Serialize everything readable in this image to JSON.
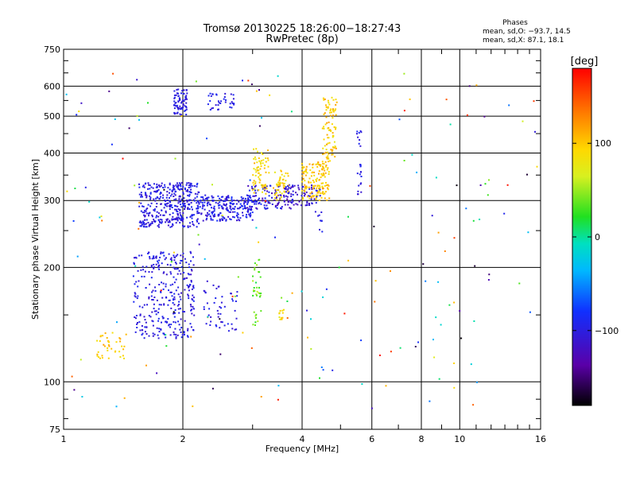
{
  "chart_data": {
    "type": "scatter",
    "title": "Tromsø 20130225 18:26:00−18:27:43",
    "subtitle": "RwPretec (8p)",
    "xlabel": "Frequency [MHz]",
    "ylabel": "Stationary phase Virtual Height [km]",
    "x_scale": "log",
    "y_scale": "log",
    "xlim": [
      1,
      16
    ],
    "ylim": [
      75,
      750
    ],
    "x_ticks": [
      1,
      2,
      4,
      6,
      8,
      10,
      16
    ],
    "x_tick_labels": [
      "1",
      "2",
      "4",
      "6",
      "8",
      "10",
      "16"
    ],
    "x_minor_ticks": [
      3,
      5,
      7,
      9,
      11,
      12,
      13,
      14,
      15
    ],
    "y_ticks": [
      75,
      100,
      200,
      300,
      400,
      500,
      600,
      750
    ],
    "y_tick_labels": [
      "75",
      "100",
      "200",
      "300",
      "400",
      "500",
      "600",
      "750"
    ],
    "y_minor_ticks": [
      80,
      90,
      150,
      250,
      350,
      450,
      550,
      650,
      700
    ],
    "grid": true,
    "colorbar": {
      "title": "[deg]",
      "range": [
        -180,
        180
      ],
      "ticks": [
        -100,
        0,
        100
      ],
      "tick_labels": [
        "−100",
        "0",
        "100"
      ]
    },
    "stats": {
      "title": "Phases",
      "line_o": "mean, sd,O: −93.7, 14.5",
      "line_x": "mean, sd,X:  87.1, 18.1"
    },
    "clusters": [
      {
        "x": [
          1.5,
          2.15
        ],
        "y": [
          130,
          220
        ],
        "phase": [
          -115,
          -85
        ],
        "count": 320
      },
      {
        "x": [
          1.9,
          2.05
        ],
        "y": [
          500,
          590
        ],
        "phase": [
          -110,
          -90
        ],
        "count": 70
      },
      {
        "x": [
          2.3,
          2.7
        ],
        "y": [
          520,
          575
        ],
        "phase": [
          -110,
          -85
        ],
        "count": 35
      },
      {
        "x": [
          2.25,
          2.75
        ],
        "y": [
          135,
          185
        ],
        "phase": [
          -115,
          -85
        ],
        "count": 50
      },
      {
        "x": [
          1.55,
          2.2
        ],
        "y": [
          255,
          335
        ],
        "phase": [
          -115,
          -85
        ],
        "count": 380
      },
      {
        "x": [
          2.2,
          3.0
        ],
        "y": [
          265,
          310
        ],
        "phase": [
          -115,
          -80
        ],
        "count": 220
      },
      {
        "x": [
          2.9,
          3.8
        ],
        "y": [
          285,
          330
        ],
        "phase": [
          -130,
          -80
        ],
        "count": 120
      },
      {
        "x": [
          3.0,
          3.3
        ],
        "y": [
          310,
          420
        ],
        "phase": [
          70,
          115
        ],
        "count": 70
      },
      {
        "x": [
          3.4,
          3.7
        ],
        "y": [
          300,
          360
        ],
        "phase": [
          75,
          110
        ],
        "count": 50
      },
      {
        "x": [
          3.6,
          4.3
        ],
        "y": [
          290,
          330
        ],
        "phase": [
          -125,
          -90
        ],
        "count": 60
      },
      {
        "x": [
          4.0,
          4.7
        ],
        "y": [
          300,
          380
        ],
        "phase": [
          80,
          120
        ],
        "count": 150
      },
      {
        "x": [
          4.5,
          4.9
        ],
        "y": [
          380,
          560
        ],
        "phase": [
          75,
          120
        ],
        "count": 90
      },
      {
        "x": [
          4.3,
          4.5
        ],
        "y": [
          240,
          330
        ],
        "phase": [
          -110,
          -90
        ],
        "count": 15
      },
      {
        "x": [
          5.5,
          5.65
        ],
        "y": [
          310,
          460
        ],
        "phase": [
          -110,
          -85
        ],
        "count": 25
      },
      {
        "x": [
          3.0,
          3.15
        ],
        "y": [
          140,
          210
        ],
        "phase": [
          20,
          60
        ],
        "count": 35
      },
      {
        "x": [
          3.5,
          3.6
        ],
        "y": [
          145,
          155
        ],
        "phase": [
          70,
          110
        ],
        "count": 12
      },
      {
        "x": [
          1.2,
          1.45
        ],
        "y": [
          115,
          135
        ],
        "phase": [
          80,
          120
        ],
        "count": 40
      },
      {
        "x": [
          1.0,
          16.0
        ],
        "y": [
          85,
          650
        ],
        "phase": [
          -180,
          180
        ],
        "count": 180
      }
    ]
  }
}
